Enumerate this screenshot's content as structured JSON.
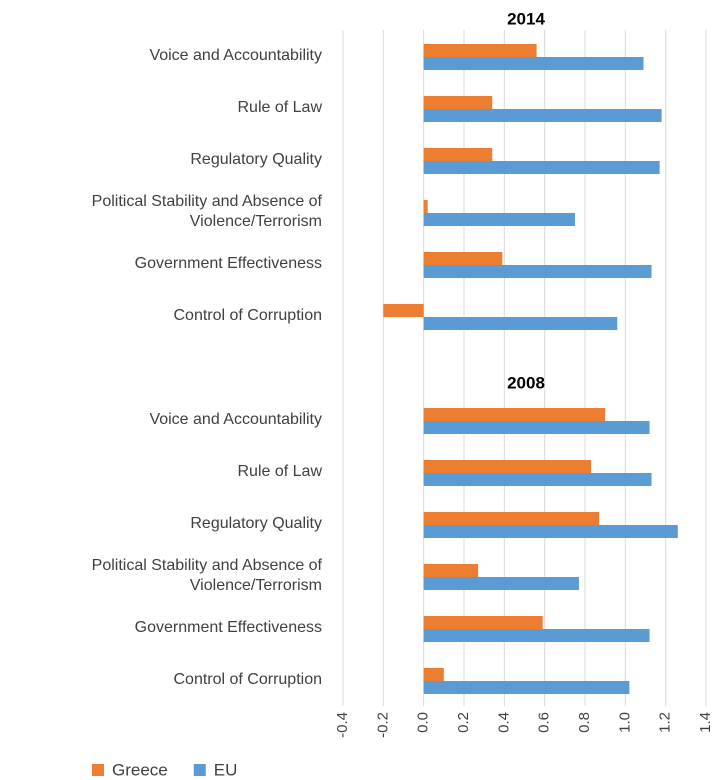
{
  "chart_data": {
    "type": "bar",
    "orientation": "horizontal",
    "xlim": [
      -0.4,
      1.4
    ],
    "xticks": [
      -0.4,
      -0.2,
      {
        "value": 0,
        "label": "0.0"
      },
      0.2,
      0.4,
      0.6,
      0.8,
      {
        "value": 1,
        "label": "1.0"
      },
      1.2,
      1.4
    ],
    "grid": true,
    "legend": "bottom",
    "series": [
      {
        "name": "Greece",
        "color": "#ed7d31"
      },
      {
        "name": "EU",
        "color": "#5b9bd5"
      }
    ],
    "panels": [
      {
        "title": "2014",
        "categories": [
          "Voice and Accountability",
          "Rule of Law",
          "Regulatory Quality",
          "Political Stability and Absence of Violence/Terrorism",
          "Government Effectiveness",
          "Control of Corruption"
        ],
        "values": [
          [
            0.56,
            0.34,
            0.34,
            0.02,
            0.39,
            -0.2
          ],
          [
            1.09,
            1.18,
            1.17,
            0.75,
            1.13,
            0.96
          ]
        ]
      },
      {
        "title": "2008",
        "categories": [
          "Voice and Accountability",
          "Rule of Law",
          "Regulatory Quality",
          "Political Stability and Absence of Violence/Terrorism",
          "Government Effectiveness",
          "Control of Corruption"
        ],
        "values": [
          [
            0.9,
            0.83,
            0.87,
            0.27,
            0.59,
            0.1
          ],
          [
            1.12,
            1.13,
            1.26,
            0.77,
            1.12,
            1.02
          ]
        ]
      }
    ]
  }
}
